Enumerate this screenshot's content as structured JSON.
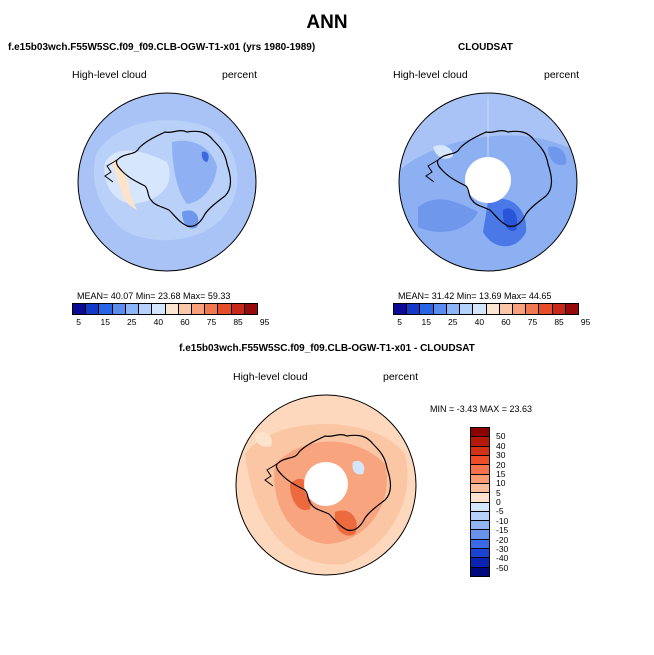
{
  "title": "ANN",
  "panels": {
    "model": {
      "header": "f.e15b03wch.F55W5SC.f09_f09.CLB-OGW-T1-x01 (yrs 1980-1989)",
      "variable": "High-level cloud",
      "units": "percent",
      "stats": "MEAN=  40.07  Min=  23.68  Max=  59.33"
    },
    "obs": {
      "header": "CLOUDSAT",
      "variable": "High-level cloud",
      "units": "percent",
      "stats": "MEAN=  31.42  Min=  13.69  Max=  44.65"
    },
    "diff": {
      "header": "f.e15b03wch.F55W5SC.f09_f09.CLB-OGW-T1-x01 - CLOUDSAT",
      "variable": "High-level cloud",
      "units": "percent",
      "stats": "MIN =  -3.43 MAX =  23.63"
    }
  },
  "colorbar_abs": {
    "labels": [
      "5",
      "15",
      "25",
      "40",
      "60",
      "75",
      "85",
      "95"
    ],
    "colors": [
      "#0a0a96",
      "#1438c8",
      "#2864e6",
      "#5a8cf0",
      "#8cb4f8",
      "#b4d2fa",
      "#d2e6fc",
      "#fbe6d2",
      "#fac8a8",
      "#f8a07a",
      "#f07850",
      "#e64e2a",
      "#c8281a",
      "#960a0a"
    ]
  },
  "colorbar_diff": {
    "labels": [
      "50",
      "40",
      "30",
      "20",
      "15",
      "10",
      "5",
      "0",
      "-5",
      "-10",
      "-15",
      "-20",
      "-30",
      "-40",
      "-50"
    ],
    "colors": [
      "#8c0000",
      "#b41a0a",
      "#d23214",
      "#ec4e28",
      "#f5734a",
      "#f89a72",
      "#fabe9c",
      "#fde3cc",
      "#d4e6fc",
      "#b4cff8",
      "#8fb3f3",
      "#6892ec",
      "#3c6ae6",
      "#1c42d2",
      "#0c22b0",
      "#000a80"
    ]
  },
  "maps": {
    "model_bg": "#a9c3f6",
    "obs_bg": "#8cb0f2",
    "diff_bg": "#fdd8bd"
  }
}
